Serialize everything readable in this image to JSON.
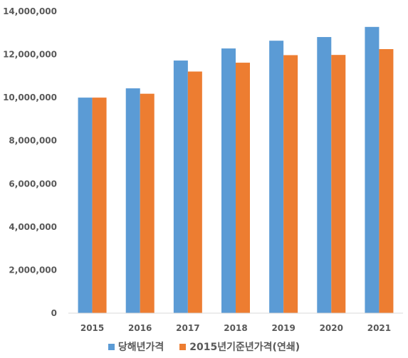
{
  "chart_data": {
    "type": "bar",
    "categories": [
      "2015",
      "2016",
      "2017",
      "2018",
      "2019",
      "2020",
      "2021"
    ],
    "series": [
      {
        "name": "당해년가격",
        "color": "#5b9bd5",
        "values": [
          10000000,
          10430000,
          11720000,
          12280000,
          12640000,
          12810000,
          13280000
        ]
      },
      {
        "name": "2015년기준년가격(연쇄)",
        "color": "#ed7d31",
        "values": [
          10000000,
          10180000,
          11210000,
          11620000,
          11970000,
          11980000,
          12250000
        ]
      }
    ],
    "ylim": [
      0,
      14000000
    ],
    "yticks": [
      "0",
      "2,000,000",
      "4,000,000",
      "6,000,000",
      "8,000,000",
      "10,000,000",
      "12,000,000",
      "14,000,000"
    ],
    "ytick_values": [
      0,
      2000000,
      4000000,
      6000000,
      8000000,
      10000000,
      12000000,
      14000000
    ],
    "grid": false,
    "legend_position": "bottom"
  }
}
